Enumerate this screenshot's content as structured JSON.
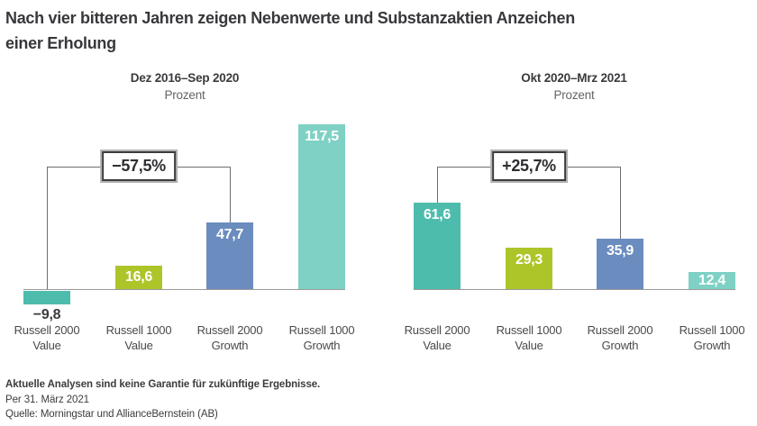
{
  "page": {
    "title_line1": "Nach vier bitteren Jahren zeigen Nebenwerte und Substanzaktien Anzeichen",
    "title_line2": "einer Erholung"
  },
  "colors": {
    "teal": "#4dbcac",
    "light_teal": "#7fd1c5",
    "green": "#aec52a",
    "blue": "#6b8cbf",
    "axis_line": "#9b9b9b",
    "connector": "#6e6e6e",
    "text_dark": "#38383c",
    "text_gray": "#646464"
  },
  "chart_data": [
    {
      "type": "bar",
      "title": "Dez 2016–Sep 2020",
      "ylabel": "Prozent",
      "categories": [
        "Russell 2000\nValue",
        "Russell 1000\nValue",
        "Russell 2000\nGrowth",
        "Russell 1000\nGrowth"
      ],
      "values": [
        -9.8,
        16.6,
        47.7,
        117.5
      ],
      "value_labels": [
        "−9,8",
        "16,6",
        "47,7",
        "117,5"
      ],
      "bar_colors": [
        "#4dbcac",
        "#aec52a",
        "#6b8cbf",
        "#7fd1c5"
      ],
      "annotation": {
        "label": "−57,5%",
        "from_bar": 0,
        "to_bar": 2
      },
      "ylim": [
        -20,
        125
      ],
      "grid": false,
      "legend": false
    },
    {
      "type": "bar",
      "title": "Okt 2020–Mrz 2021",
      "ylabel": "Prozent",
      "categories": [
        "Russell 2000\nValue",
        "Russell 1000\nValue",
        "Russell 2000\nGrowth",
        "Russell 1000\nGrowth"
      ],
      "values": [
        61.6,
        29.3,
        35.9,
        12.4
      ],
      "value_labels": [
        "61,6",
        "29,3",
        "35,9",
        "12,4"
      ],
      "bar_colors": [
        "#4dbcac",
        "#aec52a",
        "#6b8cbf",
        "#7fd1c5"
      ],
      "annotation": {
        "label": "+25,7%",
        "from_bar": 0,
        "to_bar": 2
      },
      "ylim": [
        0,
        70
      ],
      "grid": false,
      "legend": false
    }
  ],
  "footer": {
    "disclaimer": "Aktuelle Analysen sind keine Garantie für zukünftige Ergebnisse.",
    "as_of": "Per 31. März 2021",
    "source": "Quelle: Morningstar und AllianceBernstein (AB)"
  }
}
